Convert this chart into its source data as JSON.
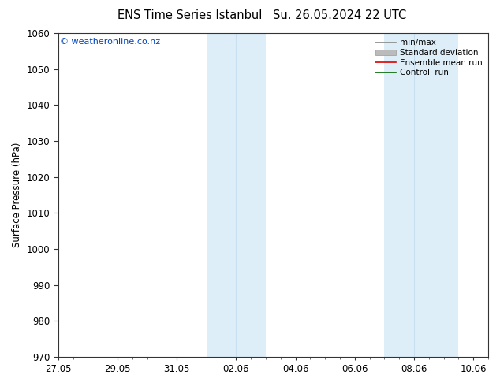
{
  "title_left": "ENS Time Series Istanbul",
  "title_right": "Su. 26.05.2024 22 UTC",
  "ylabel": "Surface Pressure (hPa)",
  "ylim": [
    970,
    1060
  ],
  "yticks": [
    970,
    980,
    990,
    1000,
    1010,
    1020,
    1030,
    1040,
    1050,
    1060
  ],
  "xtick_labels": [
    "27.05",
    "29.05",
    "31.05",
    "02.06",
    "04.06",
    "06.06",
    "08.06",
    "10.06"
  ],
  "xtick_positions": [
    0,
    2,
    4,
    6,
    8,
    10,
    12,
    14
  ],
  "shaded_bands": [
    {
      "x_start": 5.0,
      "x_end": 7.0,
      "mid": 6.0
    },
    {
      "x_start": 11.0,
      "x_end": 13.5,
      "mid": 12.0
    }
  ],
  "shade_color": "#ddeef8",
  "shade_mid_color": "#c8dff0",
  "copyright_text": "© weatheronline.co.nz",
  "copyright_color": "#0044bb",
  "legend_items": [
    {
      "label": "min/max",
      "color": "#888888",
      "lw": 1.2,
      "style": "-"
    },
    {
      "label": "Standard deviation",
      "color": "#bbbbbb",
      "lw": 5,
      "style": "-"
    },
    {
      "label": "Ensemble mean run",
      "color": "#dd0000",
      "lw": 1.2,
      "style": "-"
    },
    {
      "label": "Controll run",
      "color": "#006600",
      "lw": 1.2,
      "style": "-"
    }
  ],
  "bg_color": "#ffffff",
  "axes_bg_color": "#ffffff",
  "tick_label_fontsize": 8.5,
  "axis_label_fontsize": 8.5,
  "title_fontsize": 10.5,
  "copyright_fontsize": 8.0,
  "legend_fontsize": 7.5
}
